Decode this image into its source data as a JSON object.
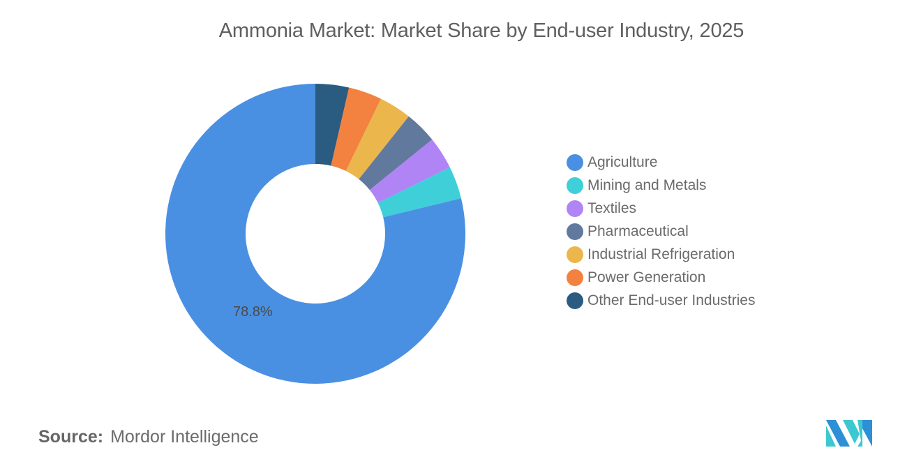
{
  "chart_data": {
    "type": "pie",
    "variant": "donut",
    "title": "Ammonia Market: Market Share by End-user Industry, 2025",
    "categories": [
      "Agriculture",
      "Mining and Metals",
      "Textiles",
      "Pharmaceutical",
      "Industrial Refrigeration",
      "Power Generation",
      "Other End-user Industries"
    ],
    "values": [
      78.8,
      3.5,
      3.5,
      3.5,
      3.5,
      3.6,
      3.6
    ],
    "colors": [
      "#4a90e2",
      "#3ecfd8",
      "#b084f5",
      "#62799e",
      "#ebb64b",
      "#f3813f",
      "#2a5b80"
    ],
    "data_labels": [
      {
        "category": "Agriculture",
        "text": "78.8%"
      }
    ],
    "legend_position": "right",
    "start_angle_deg": 0,
    "direction": "counterclockwise-from-top for minor slices (Other at top right of 12 o'clock)"
  },
  "title": "Ammonia Market: Market Share by End-user Industry, 2025",
  "data_label": "78.8%",
  "legend": {
    "items": [
      {
        "label": "Agriculture",
        "color": "#4a90e2"
      },
      {
        "label": "Mining and Metals",
        "color": "#3ecfd8"
      },
      {
        "label": "Textiles",
        "color": "#b084f5"
      },
      {
        "label": "Pharmaceutical",
        "color": "#62799e"
      },
      {
        "label": "Industrial Refrigeration",
        "color": "#ebb64b"
      },
      {
        "label": "Power Generation",
        "color": "#f3813f"
      },
      {
        "label": "Other End-user Industries",
        "color": "#2a5b80"
      }
    ]
  },
  "source": {
    "key": "Source:",
    "value": "Mordor Intelligence"
  },
  "logo": {
    "name": "mordor-intelligence-logo",
    "colors": [
      "#2d8fd5",
      "#3cc8d0"
    ]
  }
}
